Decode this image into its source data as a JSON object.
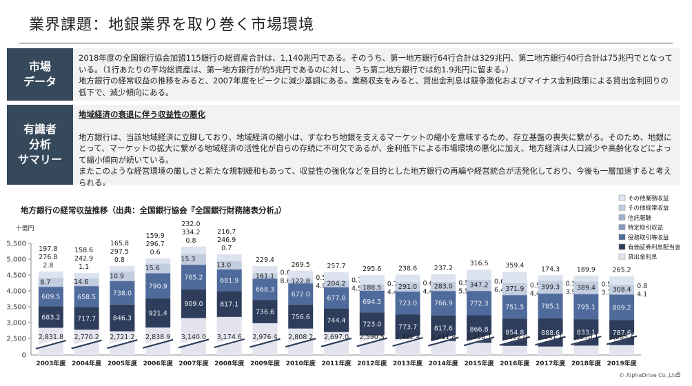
{
  "page_title": "業界課題：地銀業界を取り巻く市場環境",
  "market": {
    "tag": "市場\nデータ",
    "paragraphs": [
      "2018年度の全国銀行協会加盟115銀行の総資産合計は、1,140兆円である。そのうち、第一地方銀行64行合計は329兆円、第二地方銀行40行合計は75兆円でとなっている。（1行あたりの平均総資産は、第一地方銀行が約5兆円であるのに対し、うち第二地方銀行では約1.9兆円に留まる。）",
      "地方銀行の経常収益の推移をみると、2007年度をピークに減少基調にある。業務収支をみると、貸出金利息は競争激化およびマイナス金利政策による貸出金利回りの低下で、減少傾向にある。"
    ]
  },
  "expert": {
    "tag": "有識者\n分析\nサマリー",
    "heading": "地域経済の衰退に伴う収益性の悪化",
    "paragraphs": [
      "地方銀行は、当該地域経済に立脚しており、地域経済の縮小は、すなわち地銀を支えるマーケットの縮小を意味するため、存立基盤の喪失に繋がる。そのため、地銀にとって、マーケットの拡大に繋がる地域経済の活性化が自らの存続に不可欠であるが、金利低下による市場環境の悪化に加え、地方経済は人口減少や高齢化などによって縮小傾向が続いている。",
      "またこのような経営環境の厳しさと新たな規制緩和もあって、収益性の強化などを目的とした地方銀行の再編や経営統合が活発化しており、今後も一層加速すると考えられる。"
    ]
  },
  "copyright": "© AlphaDrive Co.,Ltd",
  "page_number": "5",
  "colors": {
    "panel_tag": "#36495b",
    "s_loan": "#e3e4ee",
    "s_sec": "#2e3d5b",
    "s_fee": "#4f6b9c",
    "s_spec": "#8399c1",
    "s_trust": "#9fb1cf",
    "s_other_op": "#c3cde0",
    "s_other_biz": "#dde3ee"
  },
  "chart_data": {
    "type": "bar",
    "stacked": true,
    "title": "地方銀行の経常収益推移（出典：全国銀行協会『全国銀行財務諸表分析』）",
    "unit_label": "十億円",
    "y_ticks": [
      "0",
      "2,500",
      "3,000",
      "3,500",
      "4,000",
      "4,500",
      "5,000",
      "5,500"
    ],
    "ylim": [
      2300,
      5500
    ],
    "axis_break": true,
    "legend_position": "top-right",
    "categories": [
      "2003年度",
      "2004年度",
      "2005年度",
      "2006年度",
      "2007年度",
      "2008年度",
      "2009年度",
      "2010年度",
      "2011年度",
      "2012年度",
      "2013年度",
      "2014年度",
      "2015年度",
      "2016年度",
      "2017年度",
      "2018年度",
      "2019年度"
    ],
    "series": [
      {
        "name": "貸出金利息",
        "values": [
          2831.8,
          2770.2,
          2721.2,
          2838.9,
          3140.0,
          3174.6,
          2976.4,
          2808.2,
          2697.0,
          2590.5,
          2482.4,
          2411.8,
          2358.1,
          2262.0,
          2241.1,
          2270.1,
          2285.6
        ],
        "labels": [
          "2,831.8",
          "2,770.2",
          "2,721.2",
          "2,838.9",
          "3,140.0",
          "3,174.6",
          "2,976.4",
          "2,808.2",
          "2,697.0",
          "2,590.5",
          "2,482.4",
          "2,411.8",
          "2,358.1",
          "2,262.0",
          "2,241.1",
          "2,270.1",
          "2,285.6"
        ]
      },
      {
        "name": "有価証券利息配当金",
        "values": [
          683.2,
          717.7,
          846.3,
          921.4,
          909.0,
          817.1,
          736.6,
          756.6,
          744.4,
          723.0,
          773.7,
          817.6,
          866.8,
          854.8,
          888.6,
          833.1,
          787.6
        ]
      },
      {
        "name": "役務取引等収益",
        "values": [
          609.5,
          658.5,
          738.0,
          790.9,
          765.2,
          681.9,
          668.3,
          672.0,
          677.0,
          694.5,
          723.0,
          766.9,
          772.3,
          751.5,
          785.1,
          795.1,
          809.2
        ]
      },
      {
        "name": "特定取引収益",
        "values": [
          8.7,
          14.6,
          10.9,
          15.6,
          15.3,
          13.0,
          8.6,
          4.9,
          4.5,
          4.4,
          4.4,
          5.5,
          6.4,
          4.4,
          3.9,
          3.7,
          4.1
        ]
      },
      {
        "name": "信託報酬",
        "values": [
          2.8,
          1.1,
          0.8,
          0.6,
          0.8,
          0.7,
          0.6,
          0.5,
          0.7,
          0.7,
          0.6,
          0.5,
          0.6,
          0.5,
          0.5,
          0.5,
          0.8
        ]
      },
      {
        "name": "その他経常収益",
        "values": [
          276.8,
          242.9,
          297.5,
          296.7,
          334.2,
          246.9,
          161.1,
          122.8,
          204.2,
          188.5,
          291.0,
          283.0,
          347.2,
          371.9,
          399.3,
          389.4,
          308.4
        ]
      },
      {
        "name": "その他業務収益",
        "values": [
          197.8,
          158.6,
          165.8,
          159.9,
          232.0,
          216.7,
          229.4,
          269.5,
          257.7,
          295.6,
          238.6,
          237.2,
          316.5,
          359.4,
          174.3,
          189.9,
          265.2
        ]
      }
    ]
  }
}
